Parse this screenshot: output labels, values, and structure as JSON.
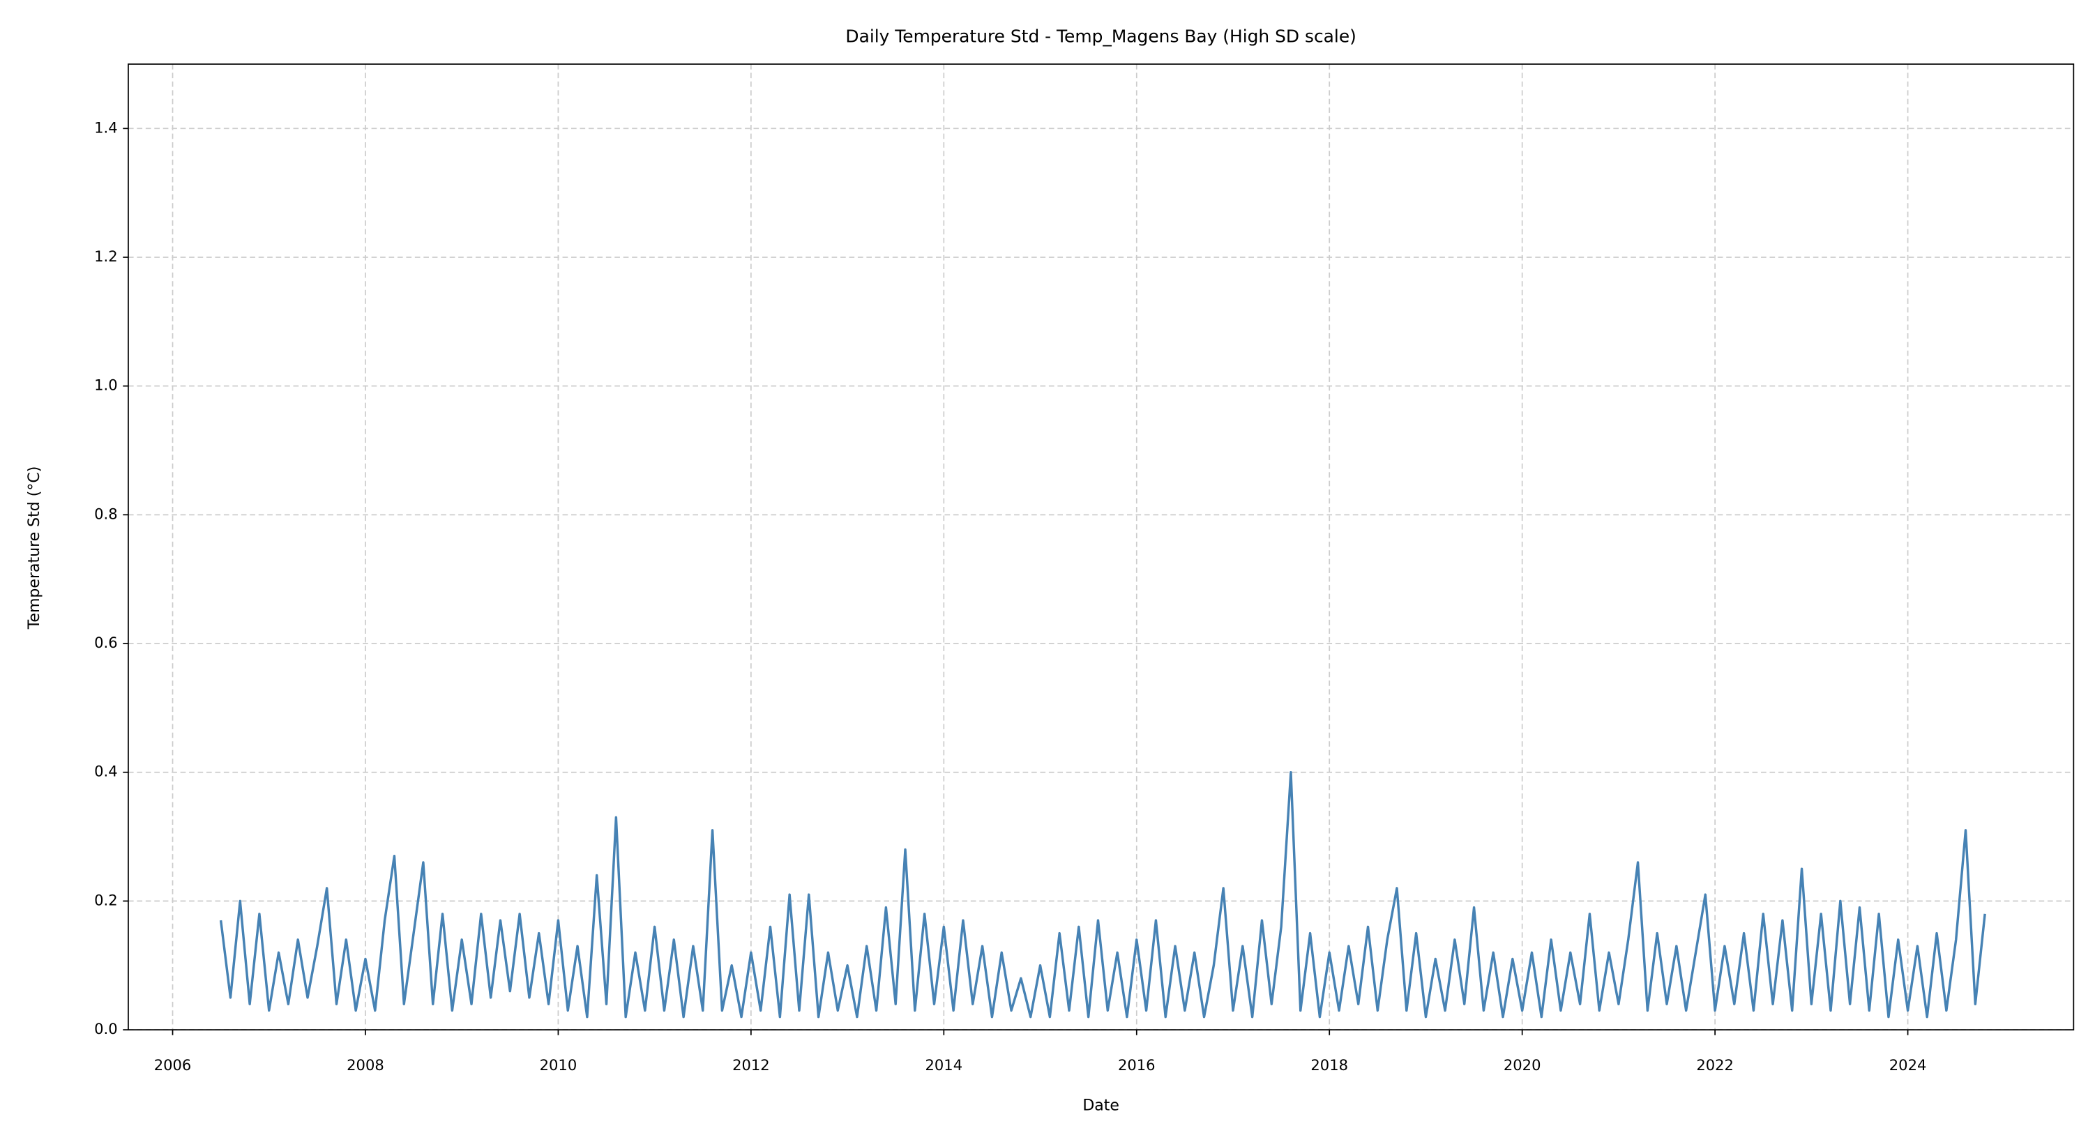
{
  "chart_data": {
    "type": "line",
    "title": "Daily Temperature Std - Temp_Magens Bay (High SD scale)",
    "xlabel": "Date",
    "ylabel": "Temperature Std (°C)",
    "xlim": [
      2005.54,
      2025.72
    ],
    "ylim": [
      0,
      1.5
    ],
    "xticks": [
      2006,
      2008,
      2010,
      2012,
      2014,
      2016,
      2018,
      2020,
      2022,
      2024
    ],
    "yticks": [
      {
        "value": 0,
        "label": "0.0"
      },
      0.2,
      0.4,
      0.6,
      0.8,
      {
        "value": 1,
        "label": "1.0"
      },
      1.2,
      1.4
    ],
    "grid": true,
    "x": [
      2006.5,
      2006.6,
      2006.7,
      2006.8,
      2006.9,
      2007.0,
      2007.1,
      2007.2,
      2007.3,
      2007.4,
      2007.5,
      2007.6,
      2007.7,
      2007.8,
      2007.9,
      2008.0,
      2008.1,
      2008.2,
      2008.3,
      2008.4,
      2008.5,
      2008.6,
      2008.7,
      2008.8,
      2008.9,
      2009.0,
      2009.1,
      2009.2,
      2009.3,
      2009.4,
      2009.5,
      2009.6,
      2009.7,
      2009.8,
      2009.9,
      2010.0,
      2010.1,
      2010.2,
      2010.3,
      2010.4,
      2010.5,
      2010.6,
      2010.7,
      2010.8,
      2010.9,
      2011.0,
      2011.1,
      2011.2,
      2011.3,
      2011.4,
      2011.5,
      2011.6,
      2011.7,
      2011.8,
      2011.9,
      2012.0,
      2012.1,
      2012.2,
      2012.3,
      2012.4,
      2012.5,
      2012.6,
      2012.7,
      2012.8,
      2012.9,
      2013.0,
      2013.1,
      2013.2,
      2013.3,
      2013.4,
      2013.5,
      2013.6,
      2013.7,
      2013.8,
      2013.9,
      2014.0,
      2014.1,
      2014.2,
      2014.3,
      2014.4,
      2014.5,
      2014.6,
      2014.7,
      2014.8,
      2014.9,
      2015.0,
      2015.1,
      2015.2,
      2015.3,
      2015.4,
      2015.5,
      2015.6,
      2015.7,
      2015.8,
      2015.9,
      2016.0,
      2016.1,
      2016.2,
      2016.3,
      2016.4,
      2016.5,
      2016.6,
      2016.7,
      2016.8,
      2016.9,
      2017.0,
      2017.1,
      2017.2,
      2017.3,
      2017.4,
      2017.5,
      2017.6,
      2017.7,
      2017.8,
      2017.9,
      2018.0,
      2018.1,
      2018.2,
      2018.3,
      2018.4,
      2018.5,
      2018.6,
      2018.7,
      2018.8,
      2018.9,
      2019.0,
      2019.1,
      2019.2,
      2019.3,
      2019.4,
      2019.5,
      2019.6,
      2019.7,
      2019.8,
      2019.9,
      2020.0,
      2020.1,
      2020.2,
      2020.3,
      2020.4,
      2020.5,
      2020.6,
      2020.7,
      2020.8,
      2020.9,
      2021.0,
      2021.1,
      2021.2,
      2021.3,
      2021.4,
      2021.5,
      2021.6,
      2021.7,
      2021.8,
      2021.9,
      2022.0,
      2022.1,
      2022.2,
      2022.3,
      2022.4,
      2022.5,
      2022.6,
      2022.7,
      2022.8,
      2022.9,
      2023.0,
      2023.1,
      2023.2,
      2023.3,
      2023.4,
      2023.5,
      2023.6,
      2023.7,
      2023.8,
      2023.9,
      2024.0,
      2024.1,
      2024.2,
      2024.3,
      2024.4,
      2024.5,
      2024.6,
      2024.7,
      2024.8
    ],
    "series": [
      {
        "color": "#4682b4",
        "values": [
          0.17,
          0.05,
          0.2,
          0.04,
          0.18,
          0.03,
          0.12,
          0.04,
          0.14,
          0.05,
          0.13,
          0.22,
          0.04,
          0.14,
          0.03,
          0.11,
          0.03,
          0.17,
          0.27,
          0.04,
          0.15,
          0.26,
          0.04,
          0.18,
          0.03,
          0.14,
          0.04,
          0.18,
          0.05,
          0.17,
          0.06,
          0.18,
          0.05,
          0.15,
          0.04,
          0.17,
          0.03,
          0.13,
          0.02,
          0.24,
          0.04,
          0.33,
          0.02,
          0.12,
          0.03,
          0.16,
          0.03,
          0.14,
          0.02,
          0.13,
          0.03,
          0.31,
          0.03,
          0.1,
          0.02,
          0.12,
          0.03,
          0.16,
          0.02,
          0.21,
          0.03,
          0.21,
          0.02,
          0.12,
          0.03,
          0.1,
          0.02,
          0.13,
          0.03,
          0.19,
          0.04,
          0.28,
          0.03,
          0.18,
          0.04,
          0.16,
          0.03,
          0.17,
          0.04,
          0.13,
          0.02,
          0.12,
          0.03,
          0.08,
          0.02,
          0.1,
          0.02,
          0.15,
          0.03,
          0.16,
          0.02,
          0.17,
          0.03,
          0.12,
          0.02,
          0.14,
          0.03,
          0.17,
          0.02,
          0.13,
          0.03,
          0.12,
          0.02,
          0.1,
          0.22,
          0.03,
          0.13,
          0.02,
          0.17,
          0.04,
          0.16,
          0.4,
          0.03,
          0.15,
          0.02,
          0.12,
          0.03,
          0.13,
          0.04,
          0.16,
          0.03,
          0.14,
          0.22,
          0.03,
          0.15,
          0.02,
          0.11,
          0.03,
          0.14,
          0.04,
          0.19,
          0.03,
          0.12,
          0.02,
          0.11,
          0.03,
          0.12,
          0.02,
          0.14,
          0.03,
          0.12,
          0.04,
          0.18,
          0.03,
          0.12,
          0.04,
          0.14,
          0.26,
          0.03,
          0.15,
          0.04,
          0.13,
          0.03,
          0.12,
          0.21,
          0.03,
          0.13,
          0.04,
          0.15,
          0.03,
          0.18,
          0.04,
          0.17,
          0.03,
          0.25,
          0.04,
          0.18,
          0.03,
          0.2,
          0.04,
          0.19,
          0.03,
          0.18,
          0.02,
          0.14,
          0.03,
          0.13,
          0.02,
          0.15,
          0.03,
          0.14,
          0.31,
          0.04,
          0.18
        ]
      }
    ]
  }
}
